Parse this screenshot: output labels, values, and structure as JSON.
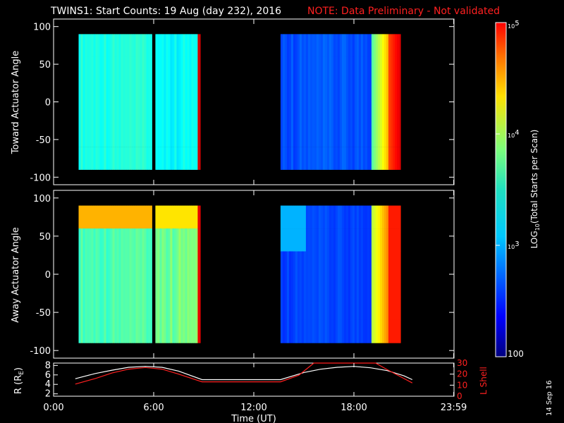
{
  "title": {
    "main": "TWINS1: Start Counts: 19 Aug (day 232), 2016",
    "note": "NOTE: Data Preliminary - Not validated"
  },
  "stamp": "14 Sep 16",
  "colors": {
    "background": "#000000",
    "axes": "#ffffff",
    "note": "#ff2020",
    "r_line": "#ffffff",
    "lshell_line": "#ff2020"
  },
  "chart_data": [
    {
      "type": "heatmap",
      "name": "toward-panel",
      "ylabel": "Toward Actuator Angle",
      "ylim": [
        -110,
        110
      ],
      "yticks": [
        "100",
        "50",
        "0",
        "-50",
        "-100"
      ],
      "ytick_values": [
        100,
        50,
        0,
        -50,
        -100
      ],
      "xlim": [
        0,
        24
      ],
      "data_segments_hours": [
        [
          1.5,
          5.9
        ],
        [
          6.1,
          8.8
        ],
        [
          13.6,
          20.8
        ]
      ],
      "angle_range": [
        -90,
        90
      ]
    },
    {
      "type": "heatmap",
      "name": "away-panel",
      "ylabel": "Away Actuator Angle",
      "ylim": [
        -110,
        110
      ],
      "yticks": [
        "100",
        "50",
        "0",
        "-50",
        "-100"
      ],
      "ytick_values": [
        100,
        50,
        0,
        -50,
        -100
      ],
      "xlim": [
        0,
        24
      ],
      "data_segments_hours": [
        [
          1.5,
          5.9
        ],
        [
          6.1,
          8.8
        ],
        [
          13.6,
          20.8
        ]
      ],
      "angle_range": [
        -90,
        90
      ]
    },
    {
      "type": "line",
      "name": "orbit-panel",
      "xlabel": "Time (UT)",
      "xticks": [
        "0:00",
        "6:00",
        "12:00",
        "18:00",
        "23:59"
      ],
      "xtick_values": [
        0,
        6,
        12,
        18,
        23.98
      ],
      "ylabel_left": "R (R",
      "ylabel_left_sub": "E",
      "ylabel_left_end": ")",
      "yticks_left": [
        "8",
        "6",
        "4",
        "2"
      ],
      "ytick_left_values": [
        8,
        6,
        4,
        2
      ],
      "ylim_left": [
        1.5,
        8.5
      ],
      "ylabel_right": "L Shell",
      "yticks_right": [
        "30",
        "20",
        "10",
        "0"
      ],
      "ytick_right_values": [
        30,
        20,
        10,
        0
      ],
      "ylim_right": [
        0,
        30
      ],
      "series": [
        {
          "axis": "left",
          "x": [
            1.3,
            2.5,
            3.5,
            4.5,
            5.5,
            6.5,
            7.5,
            8.9,
            10,
            11,
            12,
            13,
            13.6,
            15,
            16,
            17,
            18,
            19,
            20,
            21,
            21.5
          ],
          "values": [
            5.2,
            6.3,
            7.0,
            7.6,
            7.8,
            7.6,
            6.8,
            5.0,
            5.0,
            5.0,
            5.0,
            5.0,
            5.0,
            6.5,
            7.2,
            7.6,
            7.8,
            7.5,
            6.9,
            5.8,
            5.0
          ]
        },
        {
          "axis": "right",
          "x": [
            1.3,
            2.5,
            3.5,
            4.5,
            5.5,
            6.5,
            7.5,
            8.9,
            10,
            11,
            12,
            13,
            13.6,
            14.7,
            15.6,
            19.3,
            20,
            21,
            21.5
          ],
          "values": [
            11,
            16,
            21,
            24.5,
            26,
            24.5,
            20,
            13,
            13,
            13,
            13,
            13,
            13,
            19,
            30,
            30,
            24,
            16,
            12
          ]
        }
      ]
    }
  ],
  "colorbar": {
    "label_prefix": "LOG",
    "label_sub": "10",
    "label_suffix": "(Total Starts per Scan)",
    "ticks": [
      {
        "text": "10",
        "sup": "5",
        "value": 5
      },
      {
        "text": "10",
        "sup": "4",
        "value": 4
      },
      {
        "text": "10",
        "sup": "3",
        "value": 3
      },
      {
        "text": "100",
        "sup": "",
        "value": 2
      }
    ],
    "range": [
      2,
      5
    ]
  }
}
